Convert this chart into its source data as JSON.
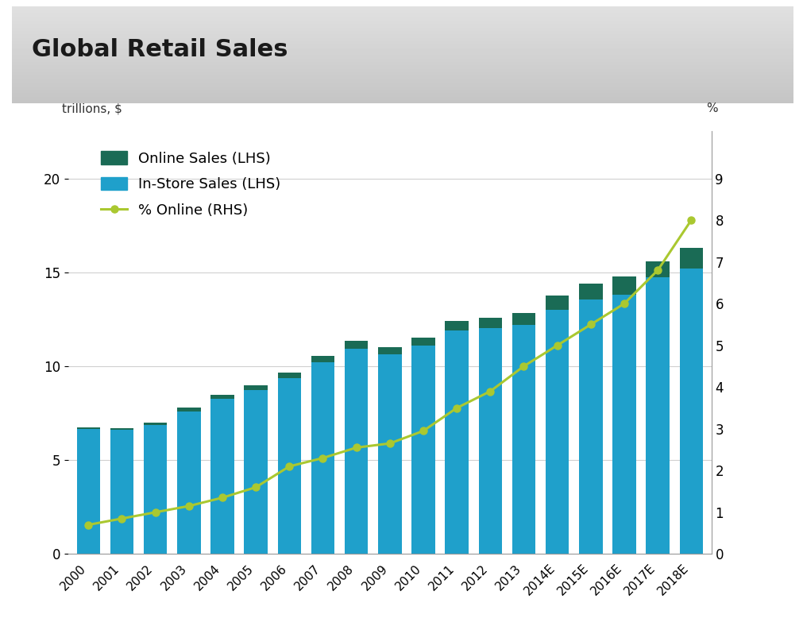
{
  "title": "Global Retail Sales",
  "ylabel_left": "trillions, $",
  "ylabel_right": "%",
  "categories": [
    "2000",
    "2001",
    "2002",
    "2003",
    "2004",
    "2005",
    "2006",
    "2007",
    "2008",
    "2009",
    "2010",
    "2011",
    "2012",
    "2013",
    "2014E",
    "2015E",
    "2016E",
    "2017E",
    "2018E"
  ],
  "instore_sales": [
    6.65,
    6.6,
    6.85,
    7.6,
    8.25,
    8.75,
    9.35,
    10.2,
    10.95,
    10.65,
    11.1,
    11.9,
    12.05,
    12.2,
    13.0,
    13.55,
    13.8,
    14.75,
    15.2
  ],
  "online_sales": [
    0.1,
    0.12,
    0.15,
    0.18,
    0.22,
    0.25,
    0.3,
    0.35,
    0.4,
    0.38,
    0.42,
    0.5,
    0.55,
    0.65,
    0.75,
    0.85,
    1.0,
    0.85,
    1.1
  ],
  "pct_online": [
    0.7,
    0.85,
    1.0,
    1.15,
    1.35,
    1.6,
    2.1,
    2.3,
    2.55,
    2.65,
    2.95,
    3.5,
    3.9,
    4.5,
    5.0,
    5.5,
    6.0,
    6.8,
    8.0
  ],
  "bar_color_instore": "#1fa0cb",
  "bar_color_online": "#1a6b55",
  "line_color": "#aac830",
  "title_bg_top": "#d4d4d4",
  "title_bg_bottom": "#c0c0c0",
  "figure_bg": "#ffffff",
  "title_fontsize": 22,
  "legend_fontsize": 13,
  "ylim_left": [
    0,
    22.5
  ],
  "ylim_right": [
    0,
    10.125
  ],
  "yticks_left": [
    0,
    5,
    10,
    15,
    20
  ],
  "yticks_right": [
    0,
    1,
    2,
    3,
    4,
    5,
    6,
    7,
    8,
    9
  ],
  "grid_color": "#d0d0d0"
}
